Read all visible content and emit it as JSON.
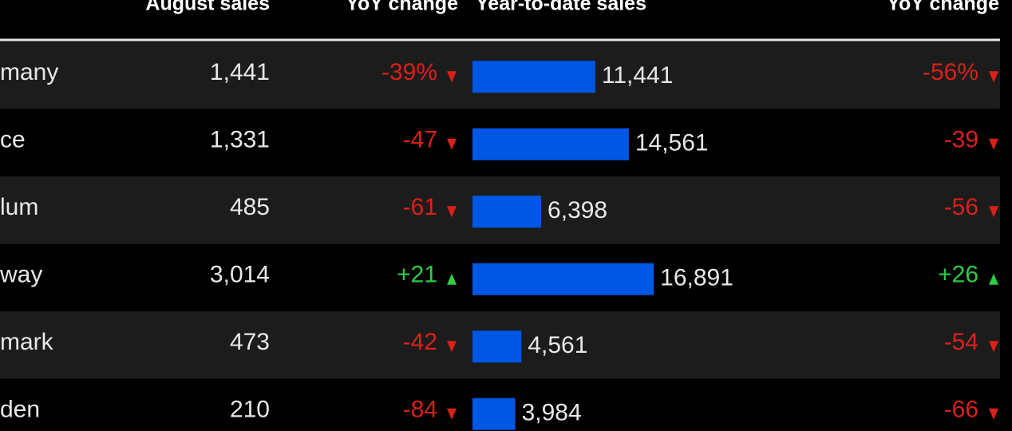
{
  "header": {
    "columns": [
      "August sales",
      "YoY change",
      "Year-to-date sales",
      "YoY change"
    ]
  },
  "table": {
    "rows": [
      {
        "country": "many",
        "august_sales": "1,441",
        "yoy_august": "-39%",
        "ytd_sales": {
          "value": 11441,
          "label": "11,441"
        },
        "yoy_ytd": "-56%"
      },
      {
        "country": "ce",
        "august_sales": "1,331",
        "yoy_august": "-47",
        "ytd_sales": {
          "value": 14561,
          "label": "14,561"
        },
        "yoy_ytd": "-39"
      },
      {
        "country": "lum",
        "august_sales": "485",
        "yoy_august": "-61",
        "ytd_sales": {
          "value": 6398,
          "label": "6,398"
        },
        "yoy_ytd": "-56"
      },
      {
        "country": "way",
        "august_sales": "3,014",
        "yoy_august": "+21",
        "ytd_sales": {
          "value": 16891,
          "label": "16,891"
        },
        "yoy_ytd": "+26"
      },
      {
        "country": "mark",
        "august_sales": "473",
        "yoy_august": "-42",
        "ytd_sales": {
          "value": 4561,
          "label": "4,561"
        },
        "yoy_ytd": "-54"
      },
      {
        "country": "den",
        "august_sales": "210",
        "yoy_august": "-84",
        "ytd_sales": {
          "value": 3984,
          "label": "3,984"
        },
        "yoy_ytd": "-66"
      }
    ]
  }
}
